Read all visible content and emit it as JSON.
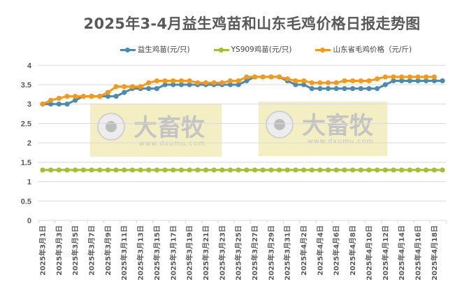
{
  "title": "2025年3-4月益生鸡苗和山东毛鸡价格日报走势图",
  "legend": [
    {
      "label": "益生鸡苗(元/只)",
      "color": "#4a8ab5"
    },
    {
      "label": "YS909鸡苗(元/只)",
      "color": "#a5be33"
    },
    {
      "label": "山东省毛鸡价格（元/斤)",
      "color": "#f39a1b"
    }
  ],
  "watermark": {
    "brand": "大畜牧",
    "url": "www.dxumu.com",
    "box_color": "#f3edbd"
  },
  "chart_data": {
    "type": "line",
    "title": "2025年3-4月益生鸡苗和山东毛鸡价格日报走势图",
    "xlabel": "",
    "ylabel": "",
    "ylim": [
      0,
      4
    ],
    "yticks": [
      0,
      0.5,
      1,
      1.5,
      2,
      2.5,
      3,
      3.5,
      4
    ],
    "grid": true,
    "legend_position": "top",
    "x": [
      "2025年3月1日",
      "2025年3月2日",
      "2025年3月3日",
      "2025年3月4日",
      "2025年3月5日",
      "2025年3月6日",
      "2025年3月7日",
      "2025年3月8日",
      "2025年3月9日",
      "2025年3月10日",
      "2025年3月11日",
      "2025年3月12日",
      "2025年3月13日",
      "2025年3月14日",
      "2025年3月15日",
      "2025年3月16日",
      "2025年3月17日",
      "2025年3月18日",
      "2025年3月19日",
      "2025年3月20日",
      "2025年3月21日",
      "2025年3月22日",
      "2025年3月23日",
      "2025年3月24日",
      "2025年3月25日",
      "2025年3月26日",
      "2025年3月27日",
      "2025年3月28日",
      "2025年3月29日",
      "2025年3月30日",
      "2025年3月31日",
      "2025年4月1日",
      "2025年4月2日",
      "2025年4月3日",
      "2025年4月4日",
      "2025年4月5日",
      "2025年4月6日",
      "2025年4月7日",
      "2025年4月8日",
      "2025年4月9日",
      "2025年4月10日",
      "2025年4月11日",
      "2025年4月12日",
      "2025年4月13日",
      "2025年4月14日",
      "2025年4月15日",
      "2025年4月16日",
      "2025年4月17日",
      "2025年4月18日",
      "2025年4月19日"
    ],
    "x_tick_labels": [
      "2025年3月1日",
      "2025年3月3日",
      "2025年3月5日",
      "2025年3月7日",
      "2025年3月9日",
      "2025年3月11日",
      "2025年3月13日",
      "2025年3月15日",
      "2025年3月17日",
      "2025年3月19日",
      "2025年3月21日",
      "2025年3月23日",
      "2025年3月25日",
      "2025年3月27日",
      "2025年3月29日",
      "2025年3月31日",
      "2025年4月2日",
      "2025年4月4日",
      "2025年4月6日",
      "2025年4月8日",
      "2025年4月10日",
      "2025年4月12日",
      "2025年4月14日",
      "2025年4月16日",
      "2025年4月18日"
    ],
    "series": [
      {
        "name": "益生鸡苗(元/只)",
        "color": "#4a8ab5",
        "values": [
          3.0,
          3.0,
          3.0,
          3.0,
          3.1,
          3.2,
          3.2,
          3.2,
          3.2,
          3.2,
          3.3,
          3.4,
          3.4,
          3.4,
          3.4,
          3.5,
          3.5,
          3.5,
          3.5,
          3.5,
          3.5,
          3.5,
          3.5,
          3.5,
          3.5,
          3.6,
          3.7,
          3.7,
          3.7,
          3.7,
          3.6,
          3.5,
          3.5,
          3.4,
          3.4,
          3.4,
          3.4,
          3.4,
          3.4,
          3.4,
          3.4,
          3.4,
          3.5,
          3.6,
          3.6,
          3.6,
          3.6,
          3.6,
          3.6,
          3.6
        ]
      },
      {
        "name": "YS909鸡苗(元/只)",
        "color": "#a5be33",
        "values": [
          1.3,
          1.3,
          1.3,
          1.3,
          1.3,
          1.3,
          1.3,
          1.3,
          1.3,
          1.3,
          1.3,
          1.3,
          1.3,
          1.3,
          1.3,
          1.3,
          1.3,
          1.3,
          1.3,
          1.3,
          1.3,
          1.3,
          1.3,
          1.3,
          1.3,
          1.3,
          1.3,
          1.3,
          1.3,
          1.3,
          1.3,
          1.3,
          1.3,
          1.3,
          1.3,
          1.3,
          1.3,
          1.3,
          1.3,
          1.3,
          1.3,
          1.3,
          1.3,
          1.3,
          1.3,
          1.3,
          1.3,
          1.3,
          1.3,
          1.3
        ]
      },
      {
        "name": "山东省毛鸡价格（元/斤)",
        "color": "#f39a1b",
        "values": [
          3.0,
          3.1,
          3.15,
          3.2,
          3.2,
          3.2,
          3.2,
          3.2,
          3.3,
          3.45,
          3.45,
          3.45,
          3.45,
          3.55,
          3.6,
          3.6,
          3.6,
          3.6,
          3.6,
          3.55,
          3.55,
          3.55,
          3.55,
          3.6,
          3.6,
          3.7,
          3.7,
          3.7,
          3.7,
          3.7,
          3.65,
          3.6,
          3.6,
          3.55,
          3.55,
          3.55,
          3.55,
          3.6,
          3.6,
          3.6,
          3.6,
          3.65,
          3.7,
          3.7,
          3.7,
          3.7,
          3.7,
          3.7,
          3.7,
          null
        ]
      }
    ]
  }
}
